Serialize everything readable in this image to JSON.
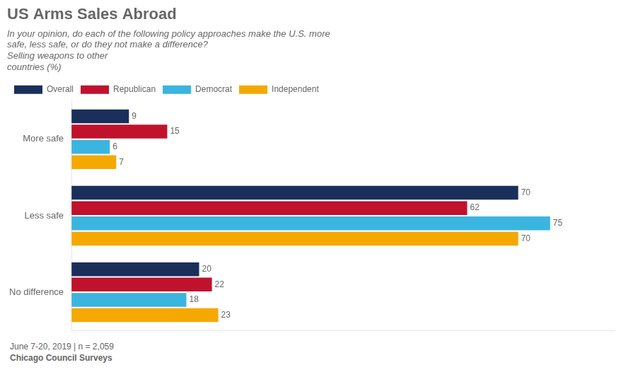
{
  "chart_data": {
    "type": "bar",
    "orientation": "horizontal",
    "title": "US Arms Sales Abroad",
    "subtitle": [
      "In your opinion, do each of the following policy approaches make the U.S. more",
      "safe, less safe, or do they not make a difference? ",
      "Selling weapons to other",
      "countries (%)"
    ],
    "footnote": "June 7-20, 2019 | n = 2,059",
    "source": "Chicago Council Surveys",
    "categories": [
      "More safe",
      "Less safe",
      "No difference"
    ],
    "series": [
      {
        "name": "Overall",
        "color": "#1a2f5a",
        "values": [
          9,
          70,
          20
        ]
      },
      {
        "name": "Republican",
        "color": "#c0122c",
        "values": [
          15,
          62,
          22
        ]
      },
      {
        "name": "Democrat",
        "color": "#3ab5e0",
        "values": [
          6,
          75,
          18
        ]
      },
      {
        "name": "Independent",
        "color": "#f5a800",
        "values": [
          7,
          70,
          23
        ]
      }
    ],
    "xlim": [
      0,
      85
    ],
    "grid": false,
    "legend": "top",
    "data_labels": true,
    "tick_labels": "y"
  }
}
